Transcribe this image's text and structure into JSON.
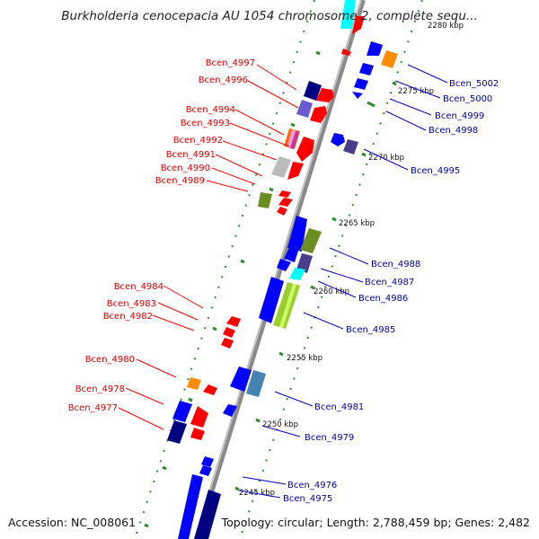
{
  "title": "Burkholderia cenocepacia AU 1054 chromosome 2, complete sequ...",
  "footer": {
    "accession": "Accession: NC_008061",
    "summary": "Topology: circular; Length: 2,788,459 bp; Genes: 2,482"
  },
  "scale_labels": [
    "2280 kbp",
    "2275 kbp",
    "2270 kbp",
    "2265 kbp",
    "2260 kbp",
    "2255 kbp",
    "2250 kbp",
    "2245 kbp"
  ],
  "left_labels": [
    "Bcen_4997",
    "Bcen_4996",
    "Bcen_4994",
    "Bcen_4993",
    "Bcen_4992",
    "Bcen_4991",
    "Bcen_4990",
    "Bcen_4989",
    "Bcen_4984",
    "Bcen_4983",
    "Bcen_4982",
    "Bcen_4980",
    "Bcen_4978",
    "Bcen_4977"
  ],
  "right_labels": [
    "Bcen_5002",
    "Bcen_5000",
    "Bcen_4999",
    "Bcen_4998",
    "Bcen_4995",
    "Bcen_4988",
    "Bcen_4987",
    "Bcen_4986",
    "Bcen_4985",
    "Bcen_4981",
    "Bcen_4979",
    "Bcen_4976",
    "Bcen_4975"
  ],
  "colors": {
    "left_label": "#dd0000",
    "right_label": "#0000aa",
    "backbone": "#8a8a8a",
    "ruler": "#2e8b2e",
    "forward_strand": "#ff0000",
    "reverse_strand": "#0000ff"
  }
}
